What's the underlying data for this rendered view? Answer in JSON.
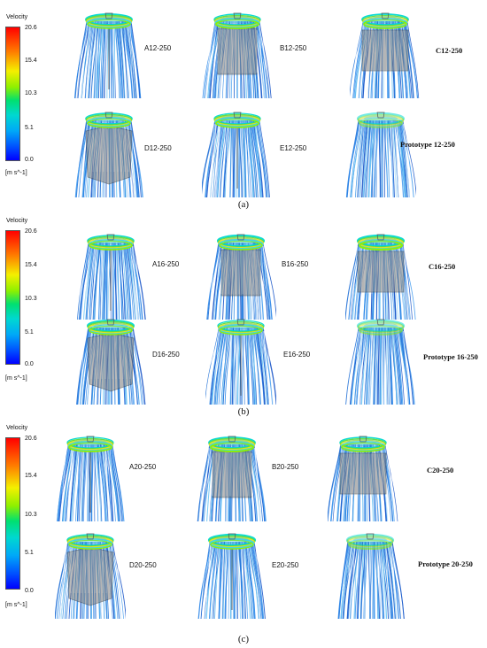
{
  "legend": {
    "title": "Velocity",
    "ticks": [
      "20.6",
      "15.4",
      "10.3",
      "5.1",
      "0.0"
    ],
    "unit": "[m s^-1]",
    "colors": [
      "#ff0000",
      "#ff7a00",
      "#f4f000",
      "#8ef000",
      "#00e070",
      "#00d8d0",
      "#00a8f8",
      "#0050ff",
      "#0000ff"
    ]
  },
  "panels": [
    {
      "caption": "(a)",
      "labels": [
        "A12-250",
        "B12-250",
        "C12-250",
        "D12-250",
        "E12-250",
        "Prototype 12-250"
      ]
    },
    {
      "caption": "(b)",
      "labels": [
        "A16-250",
        "B16-250",
        "C16-250",
        "D16-250",
        "E16-250",
        "Prototype 16-250"
      ]
    },
    {
      "caption": "(c)",
      "labels": [
        "A20-250",
        "B20-250",
        "C20-250",
        "D20-250",
        "E20-250",
        "Prototype 20-250"
      ]
    }
  ],
  "colors": {
    "streamline_blue": "#2a7de1",
    "streamline_cyan": "#3cd6e6",
    "ring_green": "#5fdc3c",
    "ring_yellow": "#e8e020",
    "panel_gray": "#7a7a7a"
  }
}
